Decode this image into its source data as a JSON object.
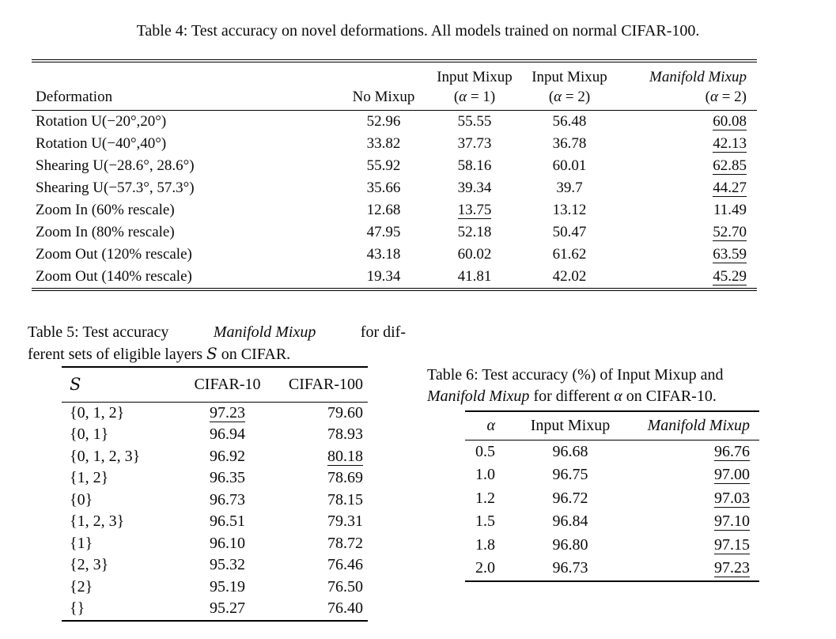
{
  "colors": {
    "text": "#0b0b0b",
    "background": "#ffffff",
    "rule": "#000000"
  },
  "table4": {
    "caption": "Table 4: Test accuracy on novel deformations. All models trained on normal CIFAR-100.",
    "headers": {
      "row1": [
        [],
        [],
        [
          {
            "t": "Input Mixup"
          }
        ],
        [
          {
            "t": "Input Mixup"
          }
        ],
        [
          {
            "t": "Manifold Mixup",
            "i": true
          }
        ]
      ],
      "row2": [
        [
          {
            "t": "Deformation"
          }
        ],
        [
          {
            "t": "No Mixup"
          }
        ],
        [
          {
            "t": "("
          },
          {
            "t": "α",
            "i": true
          },
          {
            "t": " = 1)"
          }
        ],
        [
          {
            "t": "("
          },
          {
            "t": "α",
            "i": true
          },
          {
            "t": " = 2)"
          }
        ],
        [
          {
            "t": "("
          },
          {
            "t": "α",
            "i": true
          },
          {
            "t": " = 2)"
          }
        ]
      ]
    },
    "rows": [
      {
        "cells": [
          "Rotation U(−20°,20°)",
          "52.96",
          "55.55",
          "56.48",
          "60.08"
        ],
        "underline_col": 4
      },
      {
        "cells": [
          "Rotation U(−40°,40°)",
          "33.82",
          "37.73",
          "36.78",
          "42.13"
        ],
        "underline_col": 4
      },
      {
        "cells": [
          "Shearing U(−28.6°, 28.6°)",
          "55.92",
          "58.16",
          "60.01",
          "62.85"
        ],
        "underline_col": 4
      },
      {
        "cells": [
          "Shearing U(−57.3°, 57.3°)",
          "35.66",
          "39.34",
          "39.7",
          "44.27"
        ],
        "underline_col": 4
      },
      {
        "cells": [
          "Zoom In (60% rescale)",
          "12.68",
          "13.75",
          "13.12",
          "11.49"
        ],
        "underline_col": 2
      },
      {
        "cells": [
          "Zoom In (80% rescale)",
          "47.95",
          "52.18",
          "50.47",
          "52.70"
        ],
        "underline_col": 4
      },
      {
        "cells": [
          "Zoom Out (120% rescale)",
          "43.18",
          "60.02",
          "61.62",
          "63.59"
        ],
        "underline_col": 4
      },
      {
        "cells": [
          "Zoom Out (140% rescale)",
          "19.34",
          "41.81",
          "42.02",
          "45.29"
        ],
        "underline_col": 4
      }
    ]
  },
  "table5": {
    "caption_line1": [
      {
        "t": "Table 5: Test accuracy "
      },
      {
        "t": "Manifold Mixup",
        "i": true
      },
      {
        "t": " for dif-"
      }
    ],
    "caption_line2": [
      {
        "t": "ferent sets of eligible layers "
      },
      {
        "t": "S",
        "sc": true
      },
      {
        "t": " on CIFAR."
      }
    ],
    "headers": [
      [
        {
          "t": "S",
          "sc": true
        }
      ],
      [
        {
          "t": "CIFAR-10"
        }
      ],
      [
        {
          "t": "CIFAR-100"
        }
      ]
    ],
    "rows": [
      {
        "cells": [
          "{0, 1, 2}",
          "97.23",
          "79.60"
        ],
        "underline_col": 1
      },
      {
        "cells": [
          "{0, 1}",
          "96.94",
          "78.93"
        ],
        "underline_col": null
      },
      {
        "cells": [
          "{0, 1, 2, 3}",
          "96.92",
          "80.18"
        ],
        "underline_col": 2
      },
      {
        "cells": [
          "{1, 2}",
          "96.35",
          "78.69"
        ],
        "underline_col": null
      },
      {
        "cells": [
          "{0}",
          "96.73",
          "78.15"
        ],
        "underline_col": null
      },
      {
        "cells": [
          "{1, 2, 3}",
          "96.51",
          "79.31"
        ],
        "underline_col": null
      },
      {
        "cells": [
          "{1}",
          "96.10",
          "78.72"
        ],
        "underline_col": null
      },
      {
        "cells": [
          "{2, 3}",
          "95.32",
          "76.46"
        ],
        "underline_col": null
      },
      {
        "cells": [
          "{2}",
          "95.19",
          "76.50"
        ],
        "underline_col": null
      },
      {
        "cells": [
          "{}",
          "95.27",
          "76.40"
        ],
        "underline_col": null
      }
    ]
  },
  "table6": {
    "caption_line1": [
      {
        "t": "Table 6: Test accuracy (%) of Input Mixup and"
      }
    ],
    "caption_line2": [
      {
        "t": "Manifold Mixup",
        "i": true
      },
      {
        "t": " for different "
      },
      {
        "t": "α",
        "i": true
      },
      {
        "t": " on CIFAR-10."
      }
    ],
    "headers": [
      [
        {
          "t": "α",
          "i": true
        }
      ],
      [
        {
          "t": "Input Mixup"
        }
      ],
      [
        {
          "t": "Manifold Mixup",
          "i": true
        }
      ]
    ],
    "rows": [
      {
        "cells": [
          "0.5",
          "96.68",
          "96.76"
        ],
        "underline_col": 2
      },
      {
        "cells": [
          "1.0",
          "96.75",
          "97.00"
        ],
        "underline_col": 2
      },
      {
        "cells": [
          "1.2",
          "96.72",
          "97.03"
        ],
        "underline_col": 2
      },
      {
        "cells": [
          "1.5",
          "96.84",
          "97.10"
        ],
        "underline_col": 2
      },
      {
        "cells": [
          "1.8",
          "96.80",
          "97.15"
        ],
        "underline_col": 2
      },
      {
        "cells": [
          "2.0",
          "96.73",
          "97.23"
        ],
        "underline_col": 2
      }
    ]
  }
}
